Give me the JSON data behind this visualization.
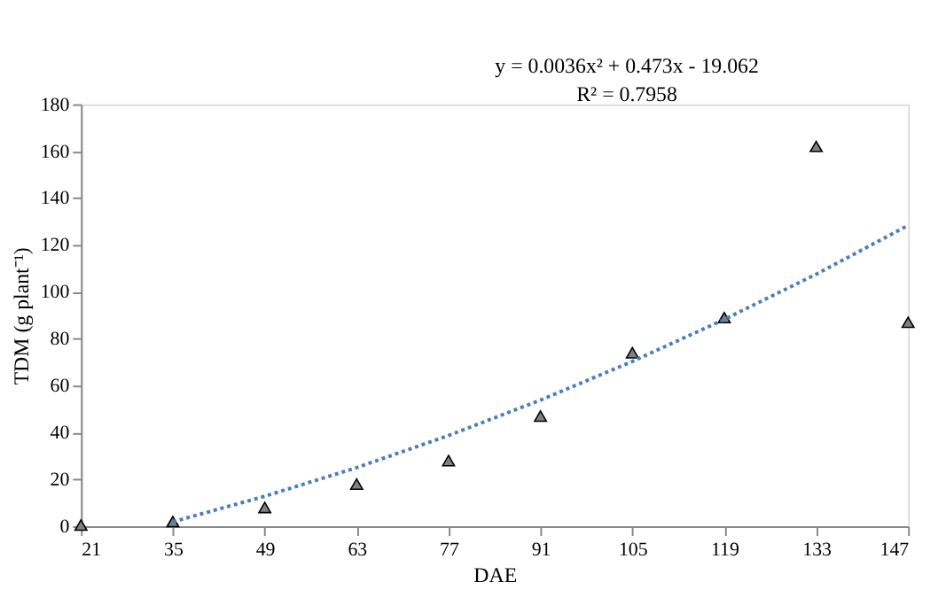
{
  "chart_data": {
    "type": "scatter",
    "xlabel": "DAE",
    "ylabel": "TDM (g plant⁻¹)",
    "xlim": [
      21,
      147
    ],
    "xticks": [
      21,
      35,
      49,
      63,
      77,
      91,
      105,
      119,
      133,
      147
    ],
    "ylim": [
      0,
      180
    ],
    "yticks": [
      0,
      20,
      40,
      60,
      80,
      100,
      120,
      140,
      160,
      180
    ],
    "grid": false,
    "annotations": [
      "y = 0.0036x² + 0.473x - 19.062",
      "R² = 0.7958"
    ],
    "series": [
      {
        "marker": "triangle",
        "color": "#808080",
        "x": [
          21,
          35,
          49,
          63,
          77,
          91,
          105,
          119,
          133,
          147
        ],
        "values": [
          0.5,
          2,
          8,
          18,
          28,
          47,
          74,
          89,
          162,
          87
        ]
      },
      {
        "type": "line",
        "marker": "none",
        "line_style": "dotted",
        "color": "#4a7ebb",
        "x": [
          35,
          49,
          63,
          77,
          91,
          105,
          119,
          133,
          147
        ],
        "values": [
          1.9,
          12.8,
          25.0,
          38.7,
          53.8,
          70.3,
          88.2,
          107.5,
          128.3
        ]
      }
    ]
  }
}
